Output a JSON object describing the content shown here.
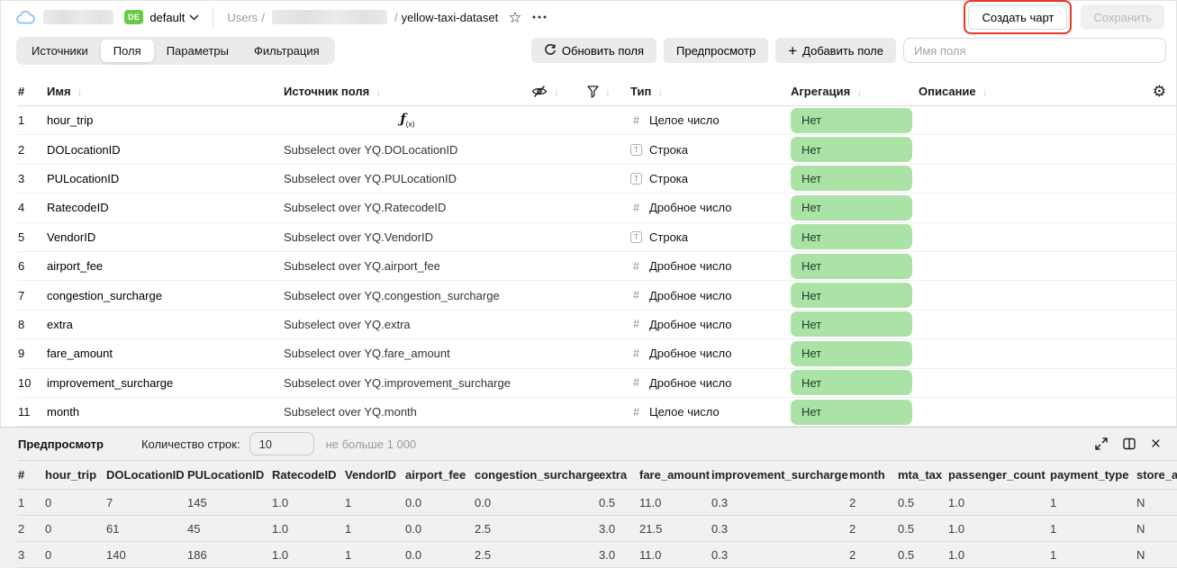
{
  "colors": {
    "agg_pill_green": "#abe3a6",
    "agg_pill_text": "#1f3b26",
    "env_badge_green": "#66cc45",
    "annotation_red": "#ea3829",
    "button_gray": "#ebebeb",
    "preview_bg": "#f1f1f1"
  },
  "icons": {
    "gear_glyph": "⚙",
    "star_glyph": "☆",
    "close_glyph": "×",
    "plus_glyph": "+",
    "sort_arrow_glyph": "↓",
    "formula_glyph": "ƒ",
    "formula_sub": "(x)"
  },
  "topbar": {
    "env_badge": "DE",
    "env_name": "default",
    "breadcrumb": {
      "root": "Users",
      "separator": "/",
      "current": "yellow-taxi-dataset"
    },
    "create_chart_label": "Создать чарт",
    "save_label": "Сохранить"
  },
  "toolbar": {
    "tabs": [
      {
        "label": "Источники",
        "active": false
      },
      {
        "label": "Поля",
        "active": true
      },
      {
        "label": "Параметры",
        "active": false
      },
      {
        "label": "Фильтрация",
        "active": false
      }
    ],
    "refresh_label": "Обновить поля",
    "preview_label": "Предпросмотр",
    "add_field_label": "Добавить поле",
    "field_name_input": {
      "placeholder": "Имя поля",
      "value": ""
    }
  },
  "fields_table": {
    "headers": {
      "index": "#",
      "name": "Имя",
      "source": "Источник поля",
      "type": "Тип",
      "aggregation": "Агрегация",
      "description": "Описание"
    },
    "rows": [
      {
        "index": "1",
        "name": "hour_trip",
        "source": "",
        "is_formula": true,
        "type_icon": "#",
        "type_label": "Целое число",
        "aggregation": "Нет",
        "description": ""
      },
      {
        "index": "2",
        "name": "DOLocationID",
        "source": "Subselect over YQ.DOLocationID",
        "is_formula": false,
        "type_icon": "T",
        "type_label": "Строка",
        "aggregation": "Нет",
        "description": ""
      },
      {
        "index": "3",
        "name": "PULocationID",
        "source": "Subselect over YQ.PULocationID",
        "is_formula": false,
        "type_icon": "T",
        "type_label": "Строка",
        "aggregation": "Нет",
        "description": ""
      },
      {
        "index": "4",
        "name": "RatecodeID",
        "source": "Subselect over YQ.RatecodeID",
        "is_formula": false,
        "type_icon": "#",
        "type_label": "Дробное число",
        "aggregation": "Нет",
        "description": ""
      },
      {
        "index": "5",
        "name": "VendorID",
        "source": "Subselect over YQ.VendorID",
        "is_formula": false,
        "type_icon": "T",
        "type_label": "Строка",
        "aggregation": "Нет",
        "description": ""
      },
      {
        "index": "6",
        "name": "airport_fee",
        "source": "Subselect over YQ.airport_fee",
        "is_formula": false,
        "type_icon": "#",
        "type_label": "Дробное число",
        "aggregation": "Нет",
        "description": ""
      },
      {
        "index": "7",
        "name": "congestion_surcharge",
        "source": "Subselect over YQ.congestion_surcharge",
        "is_formula": false,
        "type_icon": "#",
        "type_label": "Дробное число",
        "aggregation": "Нет",
        "description": ""
      },
      {
        "index": "8",
        "name": "extra",
        "source": "Subselect over YQ.extra",
        "is_formula": false,
        "type_icon": "#",
        "type_label": "Дробное число",
        "aggregation": "Нет",
        "description": ""
      },
      {
        "index": "9",
        "name": "fare_amount",
        "source": "Subselect over YQ.fare_amount",
        "is_formula": false,
        "type_icon": "#",
        "type_label": "Дробное число",
        "aggregation": "Нет",
        "description": ""
      },
      {
        "index": "10",
        "name": "improvement_surcharge",
        "source": "Subselect over YQ.improvement_surcharge",
        "is_formula": false,
        "type_icon": "#",
        "type_label": "Дробное число",
        "aggregation": "Нет",
        "description": ""
      },
      {
        "index": "11",
        "name": "month",
        "source": "Subselect over YQ.month",
        "is_formula": false,
        "type_icon": "#",
        "type_label": "Целое число",
        "aggregation": "Нет",
        "description": ""
      }
    ]
  },
  "preview": {
    "title": "Предпросмотр",
    "rows_label": "Количество строк:",
    "rows_value": "10",
    "rows_hint": "не больше 1 000",
    "columns": [
      "#",
      "hour_trip",
      "DOLocationID",
      "PULocationID",
      "RatecodeID",
      "VendorID",
      "airport_fee",
      "congestion_surcharge",
      "extra",
      "fare_amount",
      "improvement_surcharge",
      "month",
      "mta_tax",
      "passenger_count",
      "payment_type",
      "store_an"
    ],
    "rows": [
      [
        "1",
        "0",
        "7",
        "145",
        "1.0",
        "1",
        "0.0",
        "0.0",
        "0.5",
        "11.0",
        "0.3",
        "2",
        "0.5",
        "1.0",
        "1",
        "N"
      ],
      [
        "2",
        "0",
        "61",
        "45",
        "1.0",
        "1",
        "0.0",
        "2.5",
        "3.0",
        "21.5",
        "0.3",
        "2",
        "0.5",
        "1.0",
        "1",
        "N"
      ],
      [
        "3",
        "0",
        "140",
        "186",
        "1.0",
        "1",
        "0.0",
        "2.5",
        "3.0",
        "11.0",
        "0.3",
        "2",
        "0.5",
        "1.0",
        "1",
        "N"
      ]
    ]
  }
}
